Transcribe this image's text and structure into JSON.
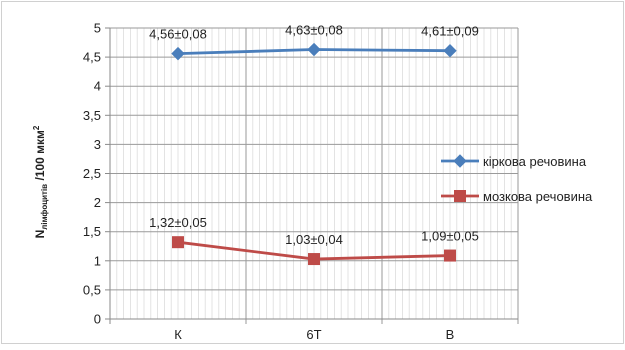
{
  "chart_data": {
    "type": "line",
    "categories": [
      "К",
      "6Т",
      "В"
    ],
    "ylabel": {
      "main": "N",
      "sub": "лімфоцитів",
      "tail": " /100 мкм",
      "sup": "2"
    },
    "ylim": [
      0,
      5
    ],
    "yticks": [
      "0",
      "0,5",
      "1",
      "1,5",
      "2",
      "2,5",
      "3",
      "3,5",
      "4",
      "4,5",
      "5"
    ],
    "ytick_values": [
      0,
      0.5,
      1,
      1.5,
      2,
      2.5,
      3,
      3.5,
      4,
      4.5,
      5
    ],
    "grid": true,
    "legend_position": "right",
    "series": [
      {
        "name": "кіркова речовина",
        "color": "#4a7ebb",
        "marker": "diamond",
        "values": [
          4.56,
          4.63,
          4.61
        ],
        "labels": [
          "4,56±0,08",
          "4,63±0,08",
          "4,61±0,09"
        ]
      },
      {
        "name": "мозкова речовина",
        "color": "#be4b48",
        "marker": "square",
        "values": [
          1.32,
          1.03,
          1.09
        ],
        "labels": [
          "1,32±0,05",
          "1,03±0,04",
          "1,09±0,05"
        ]
      }
    ]
  }
}
